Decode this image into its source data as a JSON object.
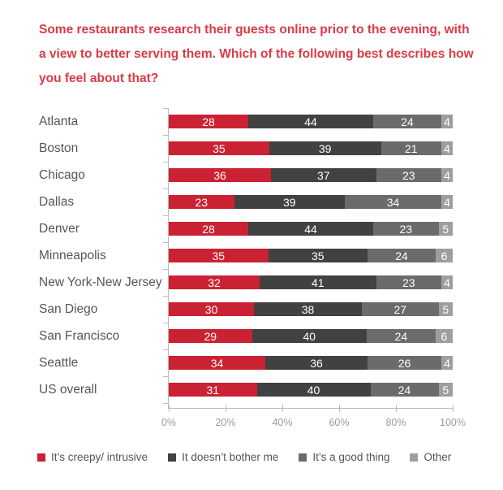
{
  "title": "Some restaurants research their guests online prior to the evening, with a view to better serving them. Which of the following best describes how you feel about that?",
  "colors": {
    "title_red": "#dc3a46",
    "axis_gray": "#bcbcbc",
    "label_gray": "#565656",
    "tick_label_gray": "#9b9b9b"
  },
  "chart_data": {
    "type": "bar",
    "orientation": "horizontal",
    "stacked": true,
    "grid": false,
    "legend_position": "bottom",
    "xlim": [
      0,
      100
    ],
    "x_ticks": [
      "0%",
      "20%",
      "40%",
      "60%",
      "80%",
      "100%"
    ],
    "categories": [
      "Atlanta",
      "Boston",
      "Chicago",
      "Dallas",
      "Denver",
      "Minneapolis",
      "New York-New Jersey",
      "San Diego",
      "San Francisco",
      "Seattle",
      "US overall"
    ],
    "series": [
      {
        "key": "creepy",
        "name": "It’s creepy/ intrusive",
        "color": "#cb2233",
        "values": [
          28,
          35,
          36,
          23,
          28,
          35,
          32,
          30,
          29,
          34,
          31
        ]
      },
      {
        "key": "not-bothered",
        "name": "It doesn’t bother me",
        "color": "#414141",
        "values": [
          44,
          39,
          37,
          39,
          44,
          35,
          41,
          38,
          40,
          36,
          40
        ]
      },
      {
        "key": "good-thing",
        "name": "It’s a good thing",
        "color": "#6b6b6b",
        "values": [
          24,
          21,
          23,
          34,
          23,
          24,
          23,
          27,
          24,
          26,
          24
        ]
      },
      {
        "key": "other",
        "name": "Other",
        "color": "#9e9e9e",
        "values": [
          4,
          4,
          4,
          4,
          5,
          6,
          4,
          5,
          6,
          4,
          5
        ]
      }
    ]
  }
}
